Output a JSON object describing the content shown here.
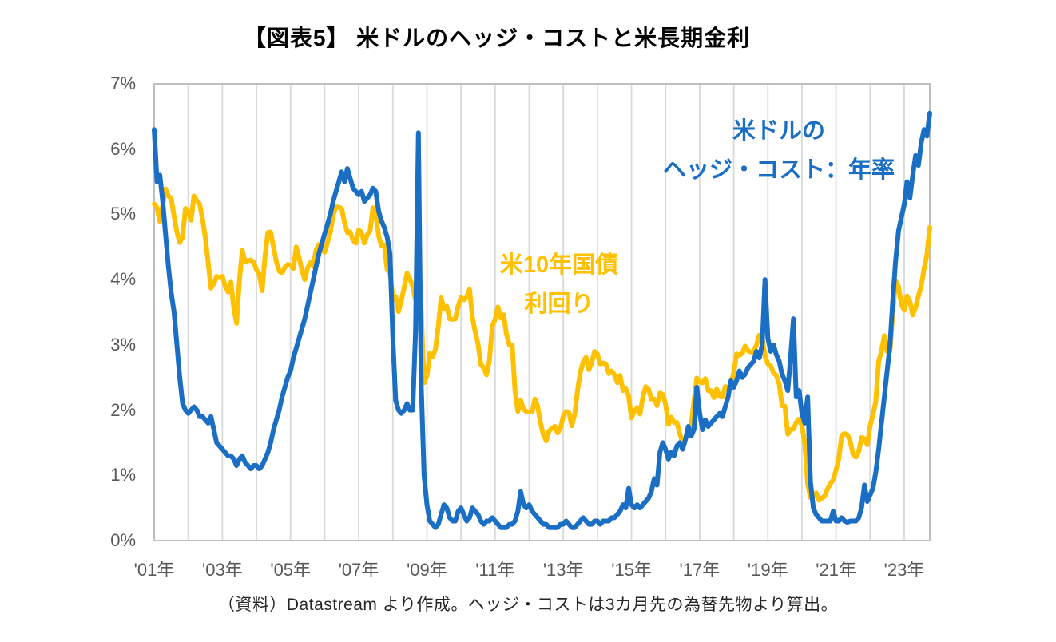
{
  "title": "【図表5】 米ドルのヘッジ・コストと米長期金利",
  "footer": "（資料）Datastream より作成。ヘッジ・コストは3カ月先の為替先物より算出。",
  "colors": {
    "hedge_cost_blue": "#1A6FC4",
    "treasury_yellow": "#FFC000",
    "gridline": "#D9D9D9",
    "plot_border": "#BFBFBF",
    "axis_text": "#595959"
  },
  "chart_data": {
    "type": "line",
    "title": "【図表5】 米ドルのヘッジ・コストと米長期金利",
    "x_start": "2001-01",
    "x_end": "2023-10",
    "x_frequency": "monthly",
    "ylim": [
      0,
      7
    ],
    "y_tick_labels": [
      "0%",
      "1%",
      "2%",
      "3%",
      "4%",
      "5%",
      "6%",
      "7%"
    ],
    "x_tick_labels": [
      "'01年",
      "'03年",
      "'05年",
      "'07年",
      "'09年",
      "'11年",
      "'13年",
      "'15年",
      "'17年",
      "'19年",
      "'21年",
      "'23年"
    ],
    "grid": "vertical-yearly-only",
    "legend_position": "inline-annotations",
    "series": [
      {
        "name": "米10年国債利回り",
        "annotation_lines": [
          "米10年国債",
          "利回り"
        ],
        "color": "#FFC000",
        "values": [
          5.16,
          5.1,
          4.89,
          5.14,
          5.39,
          5.28,
          5.24,
          4.97,
          4.73,
          4.57,
          4.65,
          5.09,
          5.04,
          4.91,
          5.28,
          5.21,
          5.16,
          4.93,
          4.65,
          4.26,
          3.87,
          3.94,
          4.05,
          4.03,
          4.05,
          3.9,
          3.81,
          3.96,
          3.57,
          3.33,
          3.98,
          4.45,
          4.27,
          4.29,
          4.3,
          4.27,
          4.15,
          4.08,
          3.83,
          4.35,
          4.72,
          4.73,
          4.5,
          4.28,
          4.13,
          4.1,
          4.19,
          4.23,
          4.22,
          4.17,
          4.5,
          4.34,
          4.14,
          4.0,
          4.18,
          4.26,
          4.2,
          4.46,
          4.54,
          4.47,
          4.42,
          4.57,
          4.72,
          4.99,
          5.11,
          5.11,
          5.09,
          4.88,
          4.72,
          4.73,
          4.6,
          4.56,
          4.76,
          4.72,
          4.56,
          4.69,
          4.75,
          5.1,
          5.0,
          4.67,
          4.52,
          4.53,
          4.15,
          4.1,
          3.74,
          3.74,
          3.51,
          3.68,
          3.88,
          4.1,
          4.01,
          3.89,
          3.69,
          3.81,
          3.53,
          2.42,
          2.52,
          2.87,
          2.82,
          2.93,
          3.29,
          3.72,
          3.56,
          3.59,
          3.4,
          3.39,
          3.4,
          3.59,
          3.73,
          3.69,
          3.73,
          3.85,
          3.42,
          3.2,
          3.01,
          2.7,
          2.65,
          2.54,
          2.76,
          3.29,
          3.39,
          3.58,
          3.41,
          3.46,
          3.17,
          3.0,
          3.0,
          2.3,
          1.98,
          2.15,
          2.01,
          1.98,
          1.97,
          1.97,
          2.17,
          2.05,
          1.8,
          1.62,
          1.53,
          1.68,
          1.72,
          1.75,
          1.65,
          1.72,
          1.91,
          1.98,
          1.96,
          1.76,
          1.93,
          2.3,
          2.58,
          2.74,
          2.81,
          2.62,
          2.72,
          2.9,
          2.86,
          2.71,
          2.72,
          2.71,
          2.56,
          2.6,
          2.54,
          2.42,
          2.53,
          2.3,
          2.33,
          2.21,
          1.88,
          1.98,
          2.04,
          1.94,
          2.2,
          2.36,
          2.32,
          2.17,
          2.17,
          2.07,
          2.26,
          2.24,
          2.09,
          1.78,
          1.89,
          1.81,
          1.81,
          1.64,
          1.5,
          1.56,
          1.63,
          1.76,
          2.14,
          2.49,
          2.43,
          2.42,
          2.48,
          2.3,
          2.3,
          2.19,
          2.32,
          2.21,
          2.2,
          2.36,
          2.35,
          2.4,
          2.58,
          2.86,
          2.84,
          2.87,
          2.98,
          2.91,
          2.89,
          2.89,
          3.0,
          3.15,
          3.12,
          2.83,
          2.71,
          2.68,
          2.57,
          2.53,
          2.4,
          2.07,
          2.06,
          1.63,
          1.7,
          1.71,
          1.81,
          1.86,
          1.76,
          1.5,
          0.87,
          0.66,
          0.67,
          0.73,
          0.62,
          0.65,
          0.68,
          0.79,
          0.87,
          0.93,
          1.08,
          1.26,
          1.61,
          1.64,
          1.62,
          1.52,
          1.32,
          1.28,
          1.37,
          1.58,
          1.56,
          1.47,
          1.76,
          1.93,
          2.13,
          2.75,
          2.9,
          3.14,
          2.9,
          2.9,
          3.52,
          3.98,
          3.89,
          3.62,
          3.53,
          3.75,
          3.66,
          3.46,
          3.57,
          3.75,
          3.9,
          4.17,
          4.38,
          4.8
        ]
      },
      {
        "name": "米ドルのヘッジ・コスト：年率",
        "annotation_lines": [
          "米ドルの",
          "ヘッジ・コスト：年率"
        ],
        "color": "#1A6FC4",
        "values": [
          6.3,
          5.5,
          5.6,
          5.2,
          4.7,
          4.2,
          3.8,
          3.5,
          3.0,
          2.5,
          2.1,
          2.0,
          1.95,
          2.0,
          2.05,
          2.0,
          1.9,
          1.9,
          1.85,
          1.8,
          1.9,
          1.7,
          1.5,
          1.45,
          1.4,
          1.35,
          1.3,
          1.3,
          1.25,
          1.15,
          1.25,
          1.3,
          1.2,
          1.15,
          1.1,
          1.15,
          1.15,
          1.1,
          1.15,
          1.25,
          1.35,
          1.5,
          1.7,
          1.85,
          2.0,
          2.2,
          2.35,
          2.5,
          2.6,
          2.8,
          2.95,
          3.1,
          3.25,
          3.4,
          3.6,
          3.8,
          4.0,
          4.2,
          4.4,
          4.55,
          4.7,
          4.85,
          5.0,
          5.2,
          5.35,
          5.5,
          5.65,
          5.5,
          5.7,
          5.55,
          5.4,
          5.35,
          5.3,
          5.35,
          5.2,
          5.25,
          5.3,
          5.4,
          5.35,
          5.05,
          4.9,
          4.8,
          4.65,
          4.4,
          3.1,
          2.15,
          2.0,
          1.95,
          2.0,
          2.1,
          2.0,
          2.0,
          3.2,
          6.25,
          2.4,
          1.0,
          0.55,
          0.3,
          0.25,
          0.2,
          0.25,
          0.4,
          0.55,
          0.5,
          0.35,
          0.3,
          0.3,
          0.45,
          0.5,
          0.4,
          0.3,
          0.35,
          0.5,
          0.45,
          0.4,
          0.3,
          0.25,
          0.3,
          0.3,
          0.35,
          0.3,
          0.25,
          0.2,
          0.2,
          0.2,
          0.25,
          0.25,
          0.3,
          0.45,
          0.75,
          0.55,
          0.5,
          0.55,
          0.45,
          0.4,
          0.35,
          0.3,
          0.25,
          0.25,
          0.2,
          0.2,
          0.2,
          0.2,
          0.25,
          0.25,
          0.3,
          0.25,
          0.2,
          0.2,
          0.25,
          0.3,
          0.35,
          0.3,
          0.25,
          0.25,
          0.3,
          0.3,
          0.25,
          0.3,
          0.3,
          0.3,
          0.35,
          0.35,
          0.4,
          0.45,
          0.55,
          0.5,
          0.8,
          0.55,
          0.5,
          0.55,
          0.5,
          0.55,
          0.6,
          0.65,
          0.75,
          0.95,
          0.85,
          1.35,
          1.5,
          1.4,
          1.25,
          1.35,
          1.3,
          1.45,
          1.5,
          1.4,
          1.55,
          1.75,
          1.6,
          1.7,
          2.35,
          1.95,
          1.7,
          1.85,
          1.75,
          1.8,
          1.85,
          1.9,
          1.95,
          1.9,
          2.05,
          2.2,
          2.45,
          2.35,
          2.45,
          2.6,
          2.5,
          2.55,
          2.65,
          2.7,
          2.75,
          2.9,
          2.8,
          3.0,
          4.0,
          3.1,
          2.9,
          3.0,
          2.85,
          2.75,
          2.55,
          2.45,
          2.3,
          2.8,
          3.4,
          2.2,
          2.3,
          1.95,
          1.8,
          2.2,
          0.9,
          0.5,
          0.4,
          0.35,
          0.3,
          0.3,
          0.3,
          0.3,
          0.45,
          0.3,
          0.3,
          0.35,
          0.3,
          0.28,
          0.3,
          0.3,
          0.3,
          0.35,
          0.5,
          0.85,
          0.6,
          0.7,
          0.8,
          1.05,
          1.4,
          1.8,
          2.2,
          2.6,
          3.0,
          3.7,
          4.3,
          4.75,
          4.95,
          5.15,
          5.5,
          5.25,
          5.6,
          5.9,
          5.75,
          6.1,
          6.3,
          6.2,
          6.55
        ]
      }
    ]
  }
}
